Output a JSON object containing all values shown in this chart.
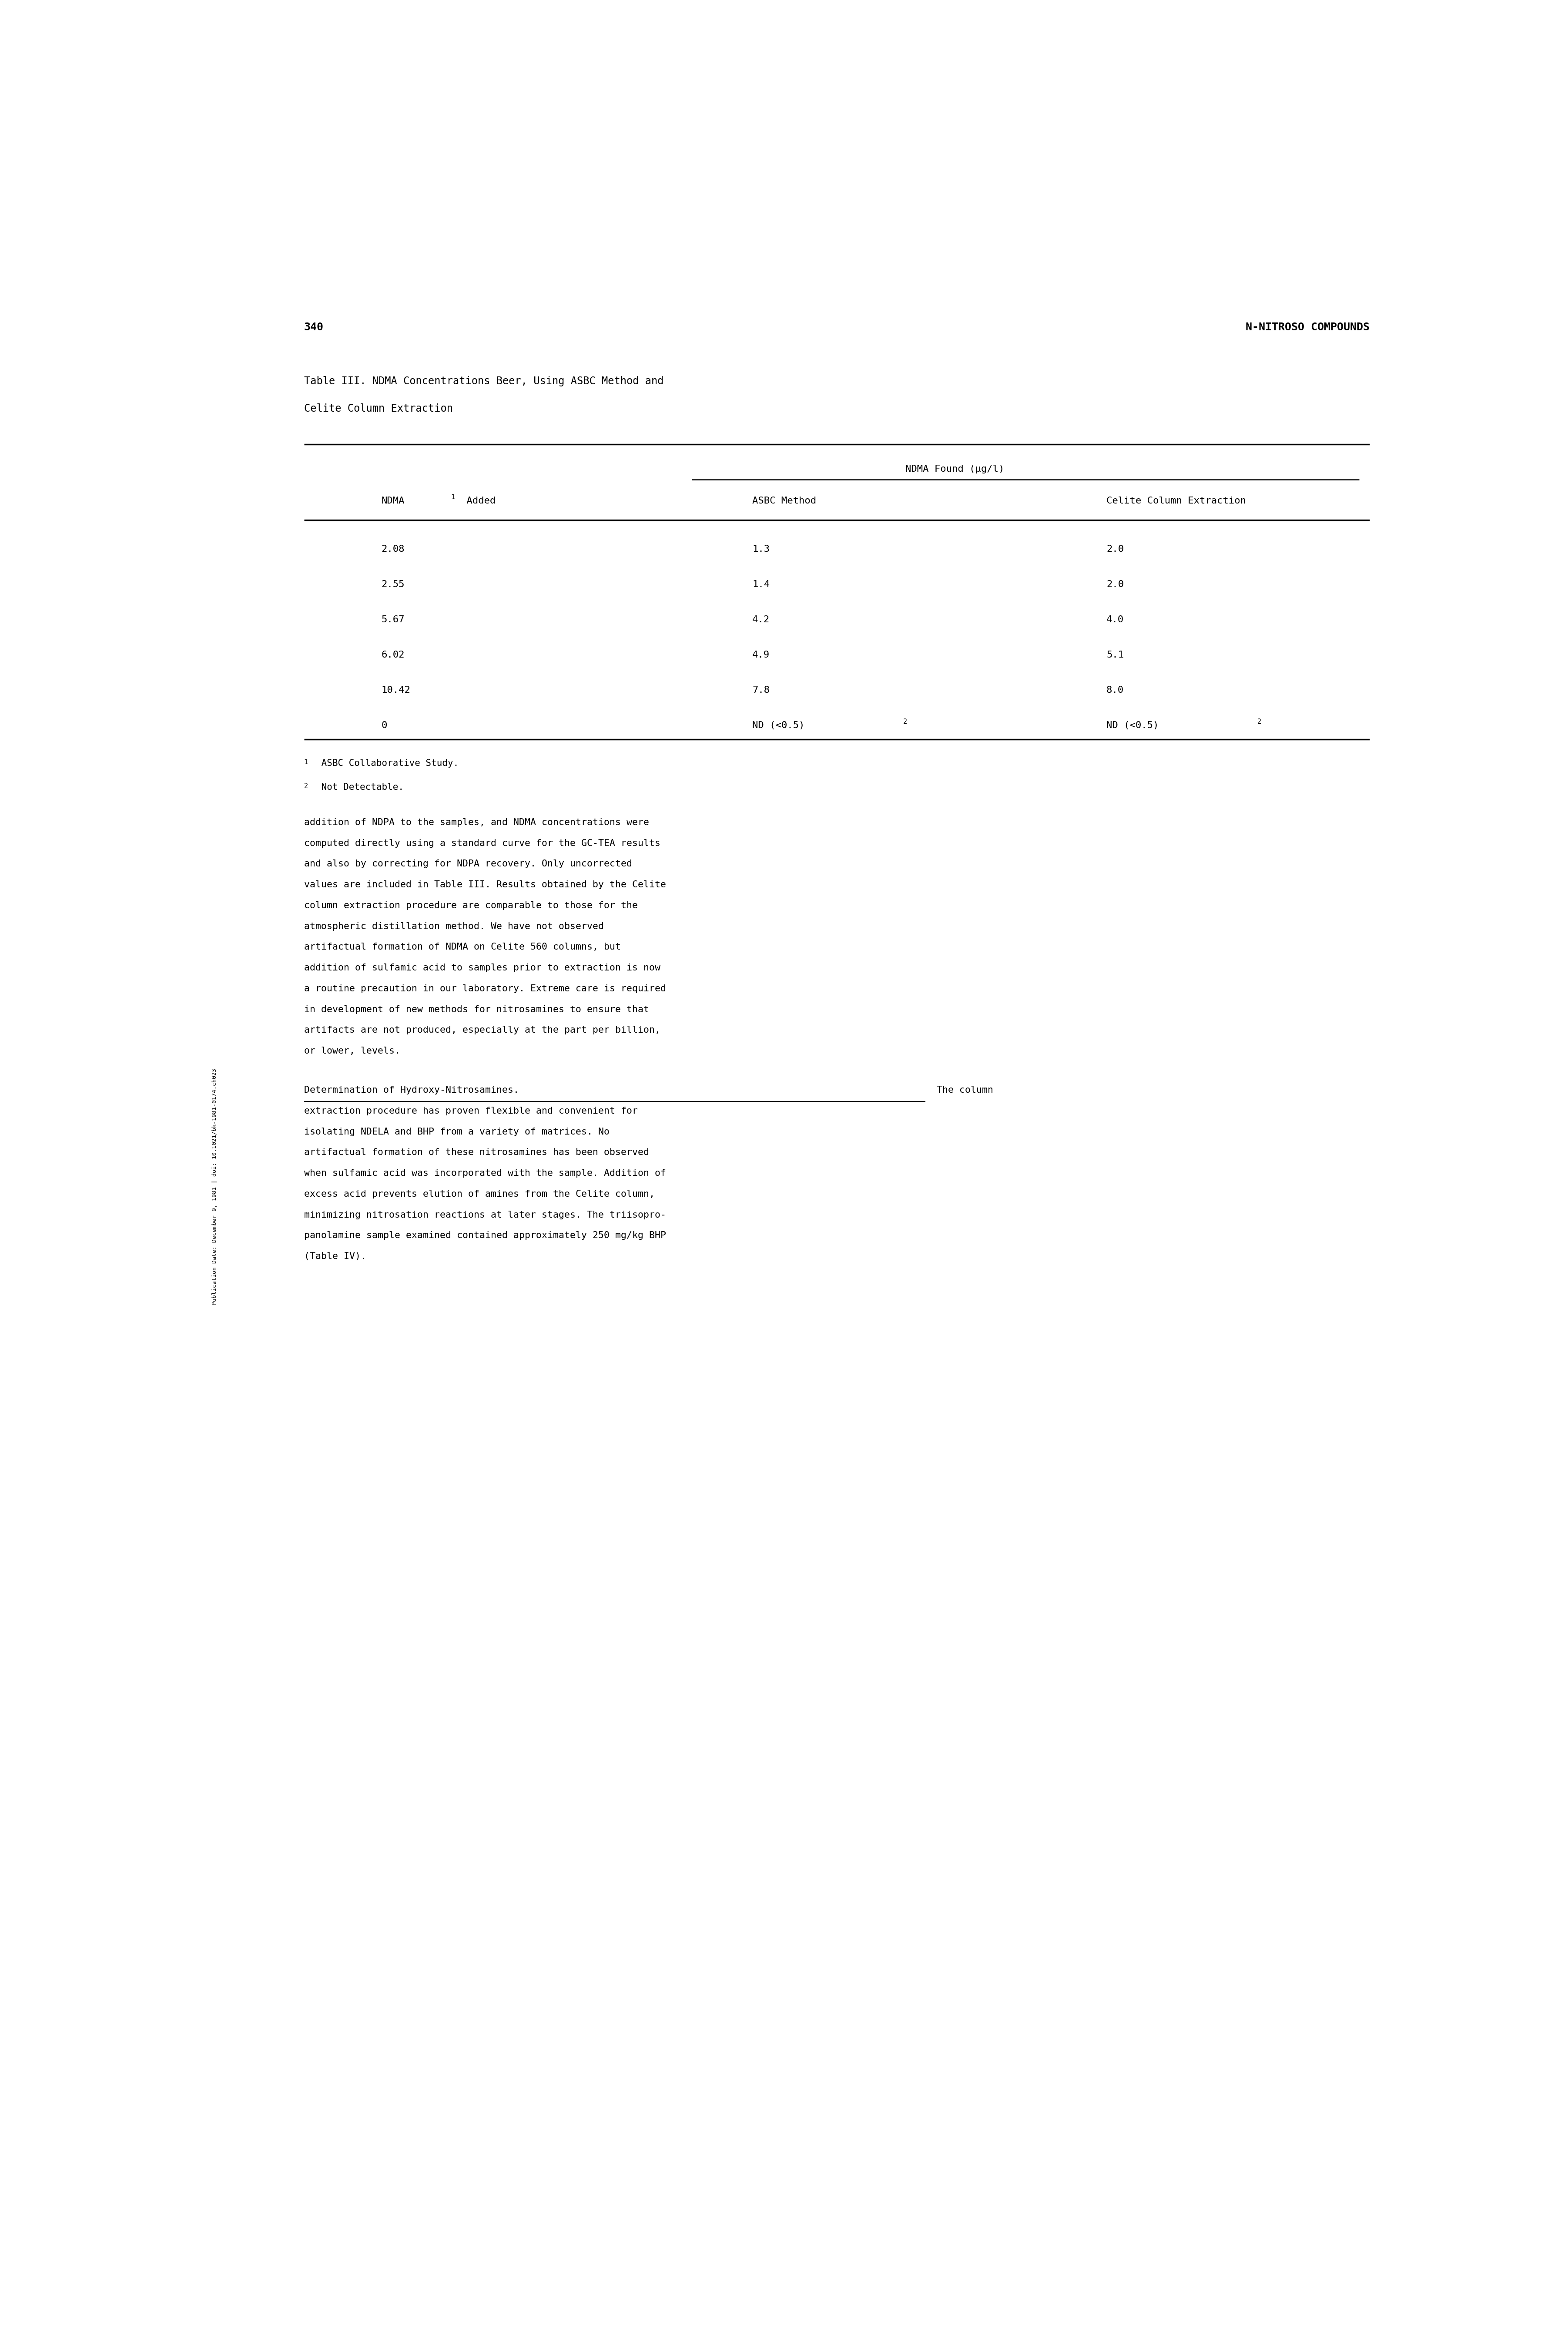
{
  "page_number": "340",
  "page_header_right": "N-NITROSO COMPOUNDS",
  "sidebar_text": "Publication Date: December 9, 1981 | doi: 10.1021/bk-1981-0174.ch023",
  "table_title_line1": "Table III. NDMA Concentrations Beer, Using ASBC Method and",
  "table_title_line2": "Celite Column Extraction",
  "col_header_span": "NDMA Found (μg/l)",
  "col1_header_line1": "NDMA",
  "col1_header_sup": "1",
  "col1_header_line2": " Added",
  "col2_header": "ASBC Method",
  "col3_header": "Celite Column Extraction",
  "table_data": [
    [
      "2.08",
      "1.3",
      "2.0"
    ],
    [
      "2.55",
      "1.4",
      "2.0"
    ],
    [
      "5.67",
      "4.2",
      "4.0"
    ],
    [
      "6.02",
      "4.9",
      "5.1"
    ],
    [
      "10.42",
      "7.8",
      "8.0"
    ],
    [
      "0",
      "ND (<0.5)",
      "ND (<0.5)"
    ]
  ],
  "last_row_sup": "2",
  "footnote1": "1  ASBC Collaborative Study.",
  "footnote2": "2  Not Detectable.",
  "body_para1": "addition of NDPA to the samples, and NDMA concentrations were\ncomputed directly using a standard curve for the GC-TEA results\nand also by correcting for NDPA recovery. Only uncorrected\nvalues are included in Table III. Results obtained by the Celite\ncolumn extraction procedure are comparable to those for the\natmospheric distillation method. We have not observed\nartifactual formation of NDMA on Celite 560 columns, but\naddition of sulfamic acid to samples prior to extraction is now\na routine precaution in our laboratory. Extreme care is required\nin development of new methods for nitrosamines to ensure that\nartifacts are not produced, especially at the part per billion,\nor lower, levels.",
  "body_para2_underline": "Determination of Hydroxy-Nitrosamines.",
  "body_para2_rest": "  The column\nextraction procedure has proven flexible and convenient for\nisolating NDELA and BHP from a variety of matrices. No\nartifactual formation of these nitrosamines has been observed\nwhen sulfamic acid was incorporated with the sample. Addition of\nexcess acid prevents elution of amines from the Celite column,\nminimizing nitrosation reactions at later stages. The triisopro-\npanolamine sample examined contained approximately 250 mg/kg BHP\n(Table IV).",
  "font_family": "monospace",
  "bg_color": "#ffffff",
  "text_color": "#000000"
}
